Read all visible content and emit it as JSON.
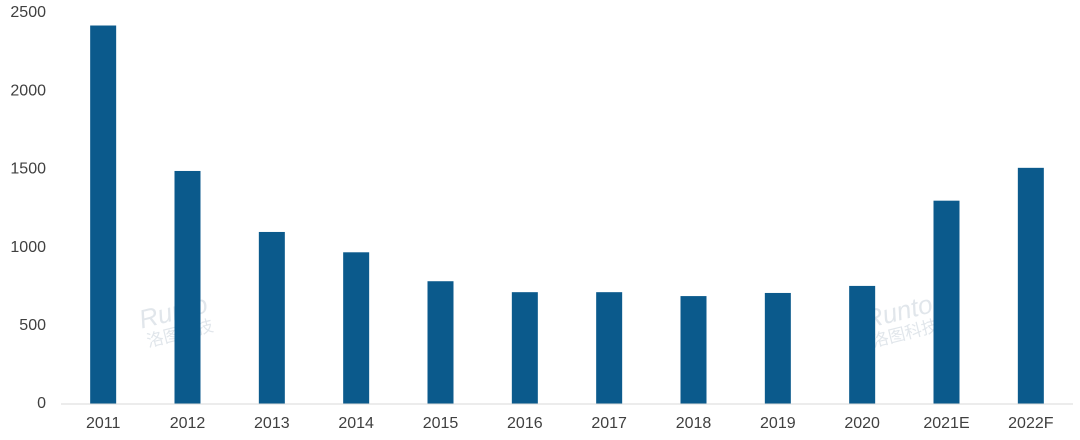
{
  "chart_data": {
    "type": "bar",
    "categories": [
      "2011",
      "2012",
      "2013",
      "2014",
      "2015",
      "2016",
      "2017",
      "2018",
      "2019",
      "2020",
      "2021E",
      "2022F"
    ],
    "values": [
      2420,
      1490,
      1100,
      970,
      785,
      715,
      715,
      690,
      710,
      755,
      1300,
      1510
    ],
    "color": "#0b5a8c",
    "ylim": [
      0,
      2500
    ],
    "yticks": [
      0,
      500,
      1000,
      1500,
      2000,
      2500
    ],
    "grid": false,
    "watermark": [
      "Runto",
      "洛图科技"
    ]
  }
}
